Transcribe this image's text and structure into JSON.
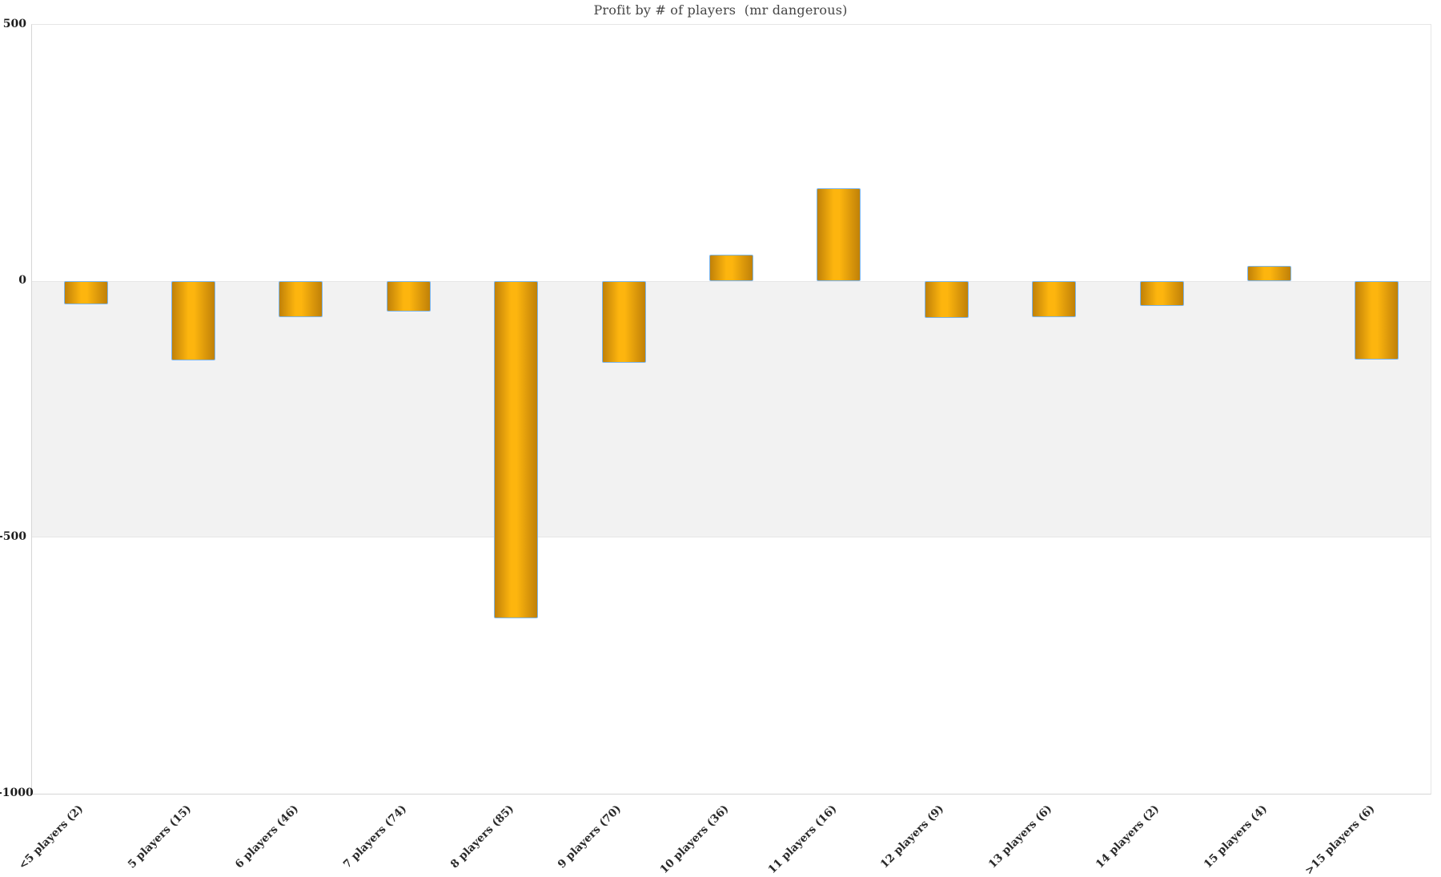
{
  "chart_data": {
    "type": "bar",
    "title": "Profit by # of players  (mr dangerous)",
    "xlabel": "",
    "ylabel": "",
    "categories": [
      "<5 players (2)",
      "5 players (15)",
      "6 players (46)",
      "7 players (74)",
      "8 players (85)",
      "9 players (70)",
      "10 players (36)",
      "11 players (16)",
      "12 players (9)",
      "13 players (6)",
      "14 players (2)",
      "15 players (4)",
      ">15 players (6)"
    ],
    "values": [
      -46,
      -155,
      -71,
      -60,
      -658,
      -159,
      52,
      181,
      -72,
      -70,
      -48,
      30,
      -153
    ],
    "ylim": [
      -1000,
      500
    ],
    "yticks": [
      500,
      0,
      -500,
      -1000
    ],
    "grid": "plot-band",
    "legend_position": "none",
    "plot_bands": [
      {
        "from": -500,
        "to": 0,
        "color": "#f2f2f2"
      }
    ],
    "colors": {
      "bar_gradient_edge": "#c08108",
      "bar_gradient_mid": "#fdb50e",
      "bar_border": "#7cb5ec",
      "band_fill": "#f2f2f2",
      "axis_line": "#d6d6d6",
      "gridline": "#e6e6e6",
      "tick_label": "#1c1c1c",
      "title_text": "#454545"
    }
  }
}
